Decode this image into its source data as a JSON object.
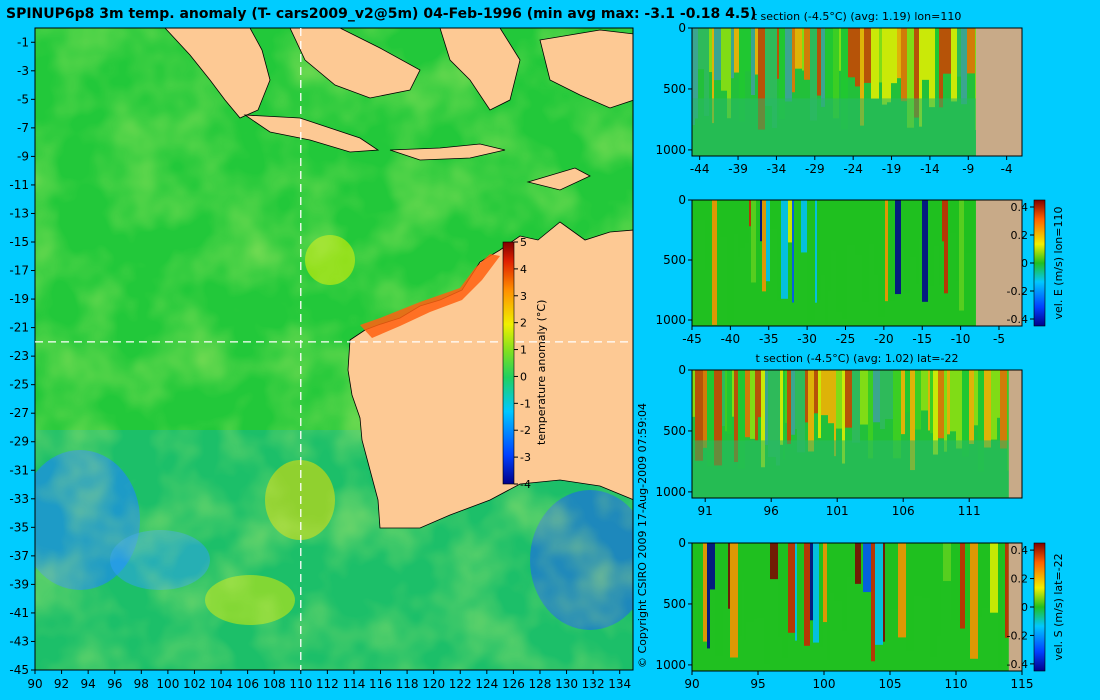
{
  "title": "SPINUP6p8 3m temp. anomaly (T- cars2009_v2@5m) 04-Feb-1996 (min avg max: -3.1 -0.18 4.5)",
  "copyright": "© Copyright CSIRO 2009   17-Aug-2009 07:59:04",
  "colors": {
    "background": "#00ccff",
    "land": "#fdc994",
    "section_land": "#c8aa88",
    "ocean_anomaly_low": "#0030c0",
    "ocean_anomaly_zero": "#20c020",
    "ocean_anomaly_high": "#800000"
  },
  "chart_data": [
    {
      "id": "map",
      "type": "heatmap",
      "title": "SPINUP6p8 3m temp. anomaly (T- cars2009_v2@5m) 04-Feb-1996 (min avg max: -3.1 -0.18 4.5)",
      "xlim": [
        90,
        135
      ],
      "ylim": [
        -45,
        0
      ],
      "xticks": [
        90,
        92,
        94,
        96,
        98,
        100,
        102,
        104,
        106,
        108,
        110,
        112,
        114,
        116,
        118,
        120,
        122,
        124,
        126,
        128,
        130,
        132,
        134
      ],
      "yticks": [
        -1,
        -3,
        -5,
        -7,
        -9,
        -11,
        -13,
        -15,
        -17,
        -19,
        -21,
        -23,
        -25,
        -27,
        -29,
        -31,
        -33,
        -35,
        -37,
        -39,
        -41,
        -43,
        -45
      ],
      "section_lines": {
        "lon": 110,
        "lat": -22
      },
      "colorbar": {
        "label": "temperature anomaly (°C)",
        "range": [
          -4,
          5
        ],
        "ticks": [
          5,
          4,
          3,
          2,
          1,
          0,
          -1,
          -2,
          -3,
          -4
        ]
      },
      "stats": {
        "min": -3.1,
        "avg": -0.18,
        "max": 4.5
      }
    },
    {
      "id": "t-section-lon",
      "type": "heatmap",
      "title": "t section (-4.5°C) (avg: 1.19) lon=110",
      "xlim": [
        -45,
        -2
      ],
      "ylim": [
        1050,
        0
      ],
      "xticks": [
        -44,
        -39,
        -34,
        -29,
        -24,
        -19,
        -14,
        -9,
        -4
      ],
      "yticks": [
        0,
        500,
        1000
      ],
      "land_from": -8
    },
    {
      "id": "vel-e-section",
      "type": "heatmap",
      "title": "",
      "xlim": [
        -45,
        -2
      ],
      "ylim": [
        1050,
        0
      ],
      "xticks": [
        -45,
        -40,
        -35,
        -30,
        -25,
        -20,
        -15,
        -10,
        -5
      ],
      "yticks": [
        0,
        500,
        1000
      ],
      "land_from": -8,
      "colorbar": {
        "label": "vel. E (m/s) lon=110",
        "range": [
          -0.45,
          0.45
        ],
        "ticks": [
          0.4,
          0.2,
          0,
          -0.2,
          -0.4
        ]
      }
    },
    {
      "id": "t-section-lat",
      "type": "heatmap",
      "title": "t section (-4.5°C) (avg: 1.02) lat=-22",
      "xlim": [
        90,
        115
      ],
      "ylim": [
        1050,
        0
      ],
      "xticks": [
        91,
        96,
        101,
        106,
        111
      ],
      "yticks": [
        0,
        500,
        1000
      ],
      "land_from": 114
    },
    {
      "id": "vel-s-section",
      "type": "heatmap",
      "title": "",
      "xlim": [
        90,
        115
      ],
      "ylim": [
        1050,
        0
      ],
      "xticks": [
        90,
        95,
        100,
        105,
        110,
        115
      ],
      "yticks": [
        0,
        500,
        1000
      ],
      "land_from": 114,
      "colorbar": {
        "label": "vel. S (m/s) lat=-22",
        "range": [
          -0.45,
          0.45
        ],
        "ticks": [
          0.4,
          0.2,
          0,
          -0.2,
          -0.4
        ]
      }
    }
  ]
}
